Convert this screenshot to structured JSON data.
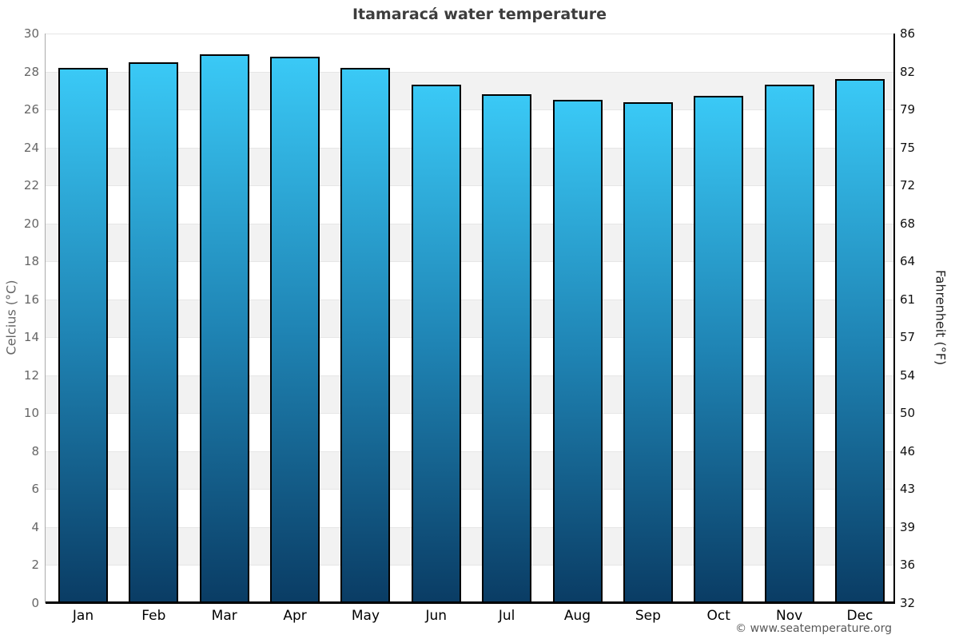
{
  "title": "Itamaracá water temperature",
  "footer": "© www.seatemperature.org",
  "chart_data": {
    "type": "bar",
    "title": "Itamaracá water temperature",
    "categories": [
      "Jan",
      "Feb",
      "Mar",
      "Apr",
      "May",
      "Jun",
      "Jul",
      "Aug",
      "Sep",
      "Oct",
      "Nov",
      "Dec"
    ],
    "values": [
      28.2,
      28.5,
      28.9,
      28.8,
      28.2,
      27.3,
      26.8,
      26.5,
      26.4,
      26.7,
      27.3,
      27.6
    ],
    "unit": "°C",
    "ylabel_left": "Celcius (°C)",
    "ylabel_right": "Fahrenheit (°F)",
    "ylim": [
      0,
      30
    ],
    "yticks_celsius": [
      0,
      2,
      4,
      6,
      8,
      10,
      12,
      14,
      16,
      18,
      20,
      22,
      24,
      26,
      28,
      30
    ],
    "yticks_fahrenheit_labels": [
      "32",
      "36",
      "39",
      "43",
      "46",
      "50",
      "54",
      "57",
      "61",
      "64",
      "68",
      "72",
      "75",
      "79",
      "82",
      "86"
    ],
    "grid": true,
    "legend": false,
    "alternating_bands": true,
    "colors": {
      "bar_gradient_top": "#3ac9f6",
      "bar_gradient_mid": "#1f84b4",
      "bar_gradient_bottom": "#0a3c64",
      "bar_border": "#000000",
      "band": "#f2f2f2",
      "gridline": "#e6e6e6",
      "title_text": "#3d3d3d",
      "left_axis_text": "#666666",
      "right_axis_text": "#111111",
      "background": "#ffffff"
    }
  }
}
